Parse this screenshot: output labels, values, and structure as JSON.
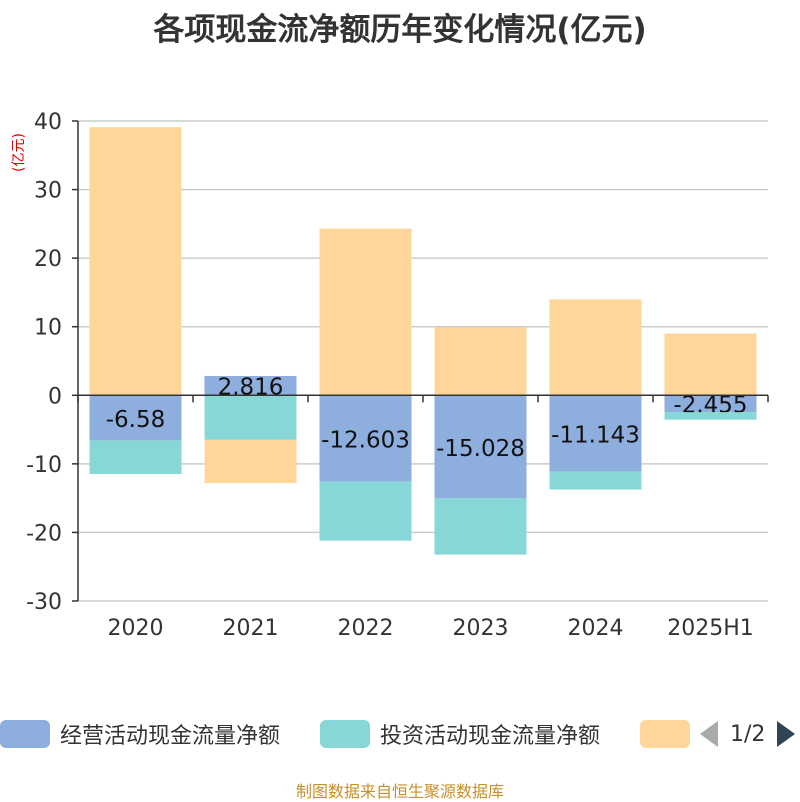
{
  "title": "各项现金流净额历年变化情况(亿元)",
  "unit_label": "(亿元)",
  "footer": "制图数据来自恒生聚源数据库",
  "legend": {
    "pager": "1/2",
    "items": [
      {
        "label": "经营活动现金流量净额",
        "color": "#8eaede"
      },
      {
        "label": "投资活动现金流量净额",
        "color": "#87d7d7"
      },
      {
        "label": "",
        "color": "#fed69a"
      }
    ]
  },
  "chart_data": {
    "type": "bar",
    "stacked": true,
    "categories": [
      "2020",
      "2021",
      "2022",
      "2023",
      "2024",
      "2025H1"
    ],
    "ylim": [
      -30,
      40
    ],
    "yticks": [
      40,
      30,
      20,
      10,
      0,
      -10,
      -20,
      -30
    ],
    "grid": true,
    "legend_position": "bottom",
    "series": [
      {
        "name": "经营活动现金流量净额",
        "color": "#8eaede",
        "values": [
          -6.58,
          2.816,
          -12.603,
          -15.028,
          -11.143,
          -2.455
        ],
        "labels": [
          "-6.58",
          "2.816",
          "-12.603",
          "-15.028",
          "-11.143",
          "-2.455"
        ]
      },
      {
        "name": "投资活动现金流量净额",
        "color": "#87d7d7",
        "values": [
          -4.9,
          -6.5,
          -8.6,
          -8.2,
          -2.6,
          -1.1
        ]
      },
      {
        "color": "#fed69a",
        "values": [
          39.1,
          -6.3,
          24.3,
          9.9,
          14.0,
          9.0
        ]
      }
    ]
  }
}
